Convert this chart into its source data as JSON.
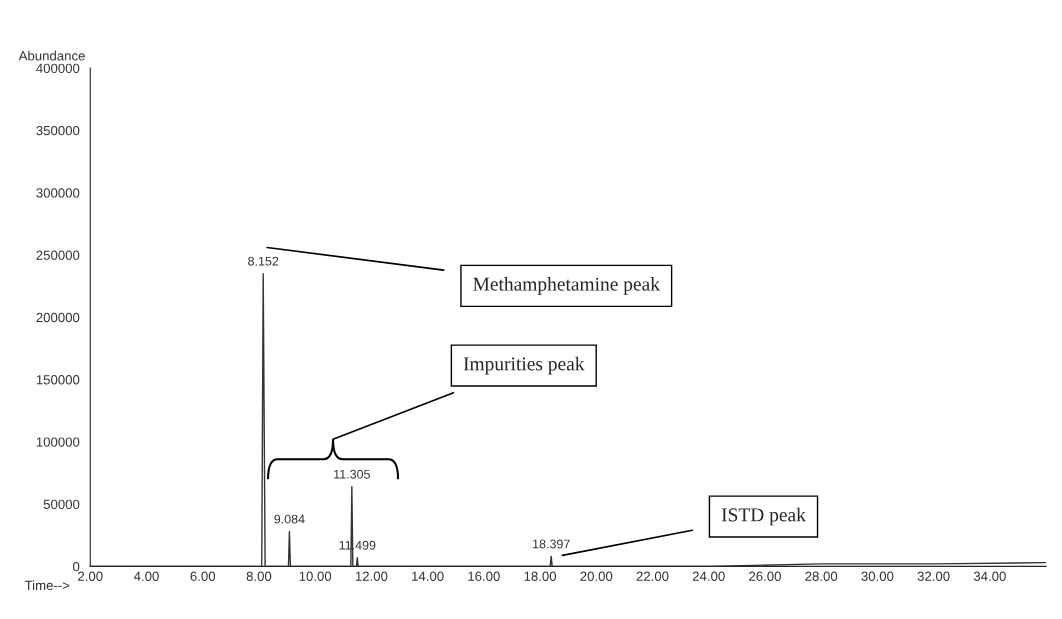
{
  "chart_data": {
    "type": "line",
    "xlabel": "Time-->",
    "ylabel": "Abundance",
    "series": [
      {
        "color": "#333333",
        "x": [
          2.0,
          8.1,
          8.152,
          8.22,
          9.05,
          9.084,
          9.12,
          11.27,
          11.305,
          11.34,
          11.47,
          11.499,
          11.53,
          18.36,
          18.397,
          18.43,
          24.0,
          28.0,
          32.0,
          36.0
        ],
        "values": [
          0,
          0,
          235000,
          0,
          0,
          28000,
          0,
          0,
          64000,
          0,
          0,
          7000,
          0,
          0,
          8000,
          0,
          0,
          2000,
          2000,
          3000
        ]
      }
    ],
    "xlim": [
      2,
      36
    ],
    "ylim": [
      0,
      400000
    ],
    "xticks": [
      {
        "value": 2,
        "label": "2.00"
      },
      {
        "value": 4,
        "label": "4.00"
      },
      {
        "value": 6,
        "label": "6.00"
      },
      {
        "value": 8,
        "label": "8.00"
      },
      {
        "value": 10,
        "label": "10.00"
      },
      {
        "value": 12,
        "label": "12.00"
      },
      {
        "value": 14,
        "label": "14.00"
      },
      {
        "value": 16,
        "label": "16.00"
      },
      {
        "value": 18,
        "label": "18.00"
      },
      {
        "value": 20,
        "label": "20.00"
      },
      {
        "value": 22,
        "label": "22.00"
      },
      {
        "value": 24,
        "label": "24.00"
      },
      {
        "value": 26,
        "label": "26.00"
      },
      {
        "value": 28,
        "label": "28.00"
      },
      {
        "value": 30,
        "label": "30.00"
      },
      {
        "value": 32,
        "label": "32.00"
      },
      {
        "value": 34,
        "label": "34.00"
      }
    ],
    "yticks": [
      0,
      50000,
      100000,
      150000,
      200000,
      250000,
      300000,
      350000,
      400000
    ],
    "grid": false,
    "marker": "none",
    "line_style": "solid",
    "annotations": [
      {
        "text": "8.152",
        "x": 8.152,
        "y": 235000
      },
      {
        "text": "9.084",
        "x": 9.084,
        "y": 28000
      },
      {
        "text": "11.305",
        "x": 11.305,
        "y": 64000
      },
      {
        "text": "11.499",
        "x": 11.499,
        "y": 7000
      },
      {
        "text": "18.397",
        "x": 18.397,
        "y": 8000
      },
      "Methamphetamine peak",
      "Impurities peak",
      "ISTD peak"
    ]
  }
}
